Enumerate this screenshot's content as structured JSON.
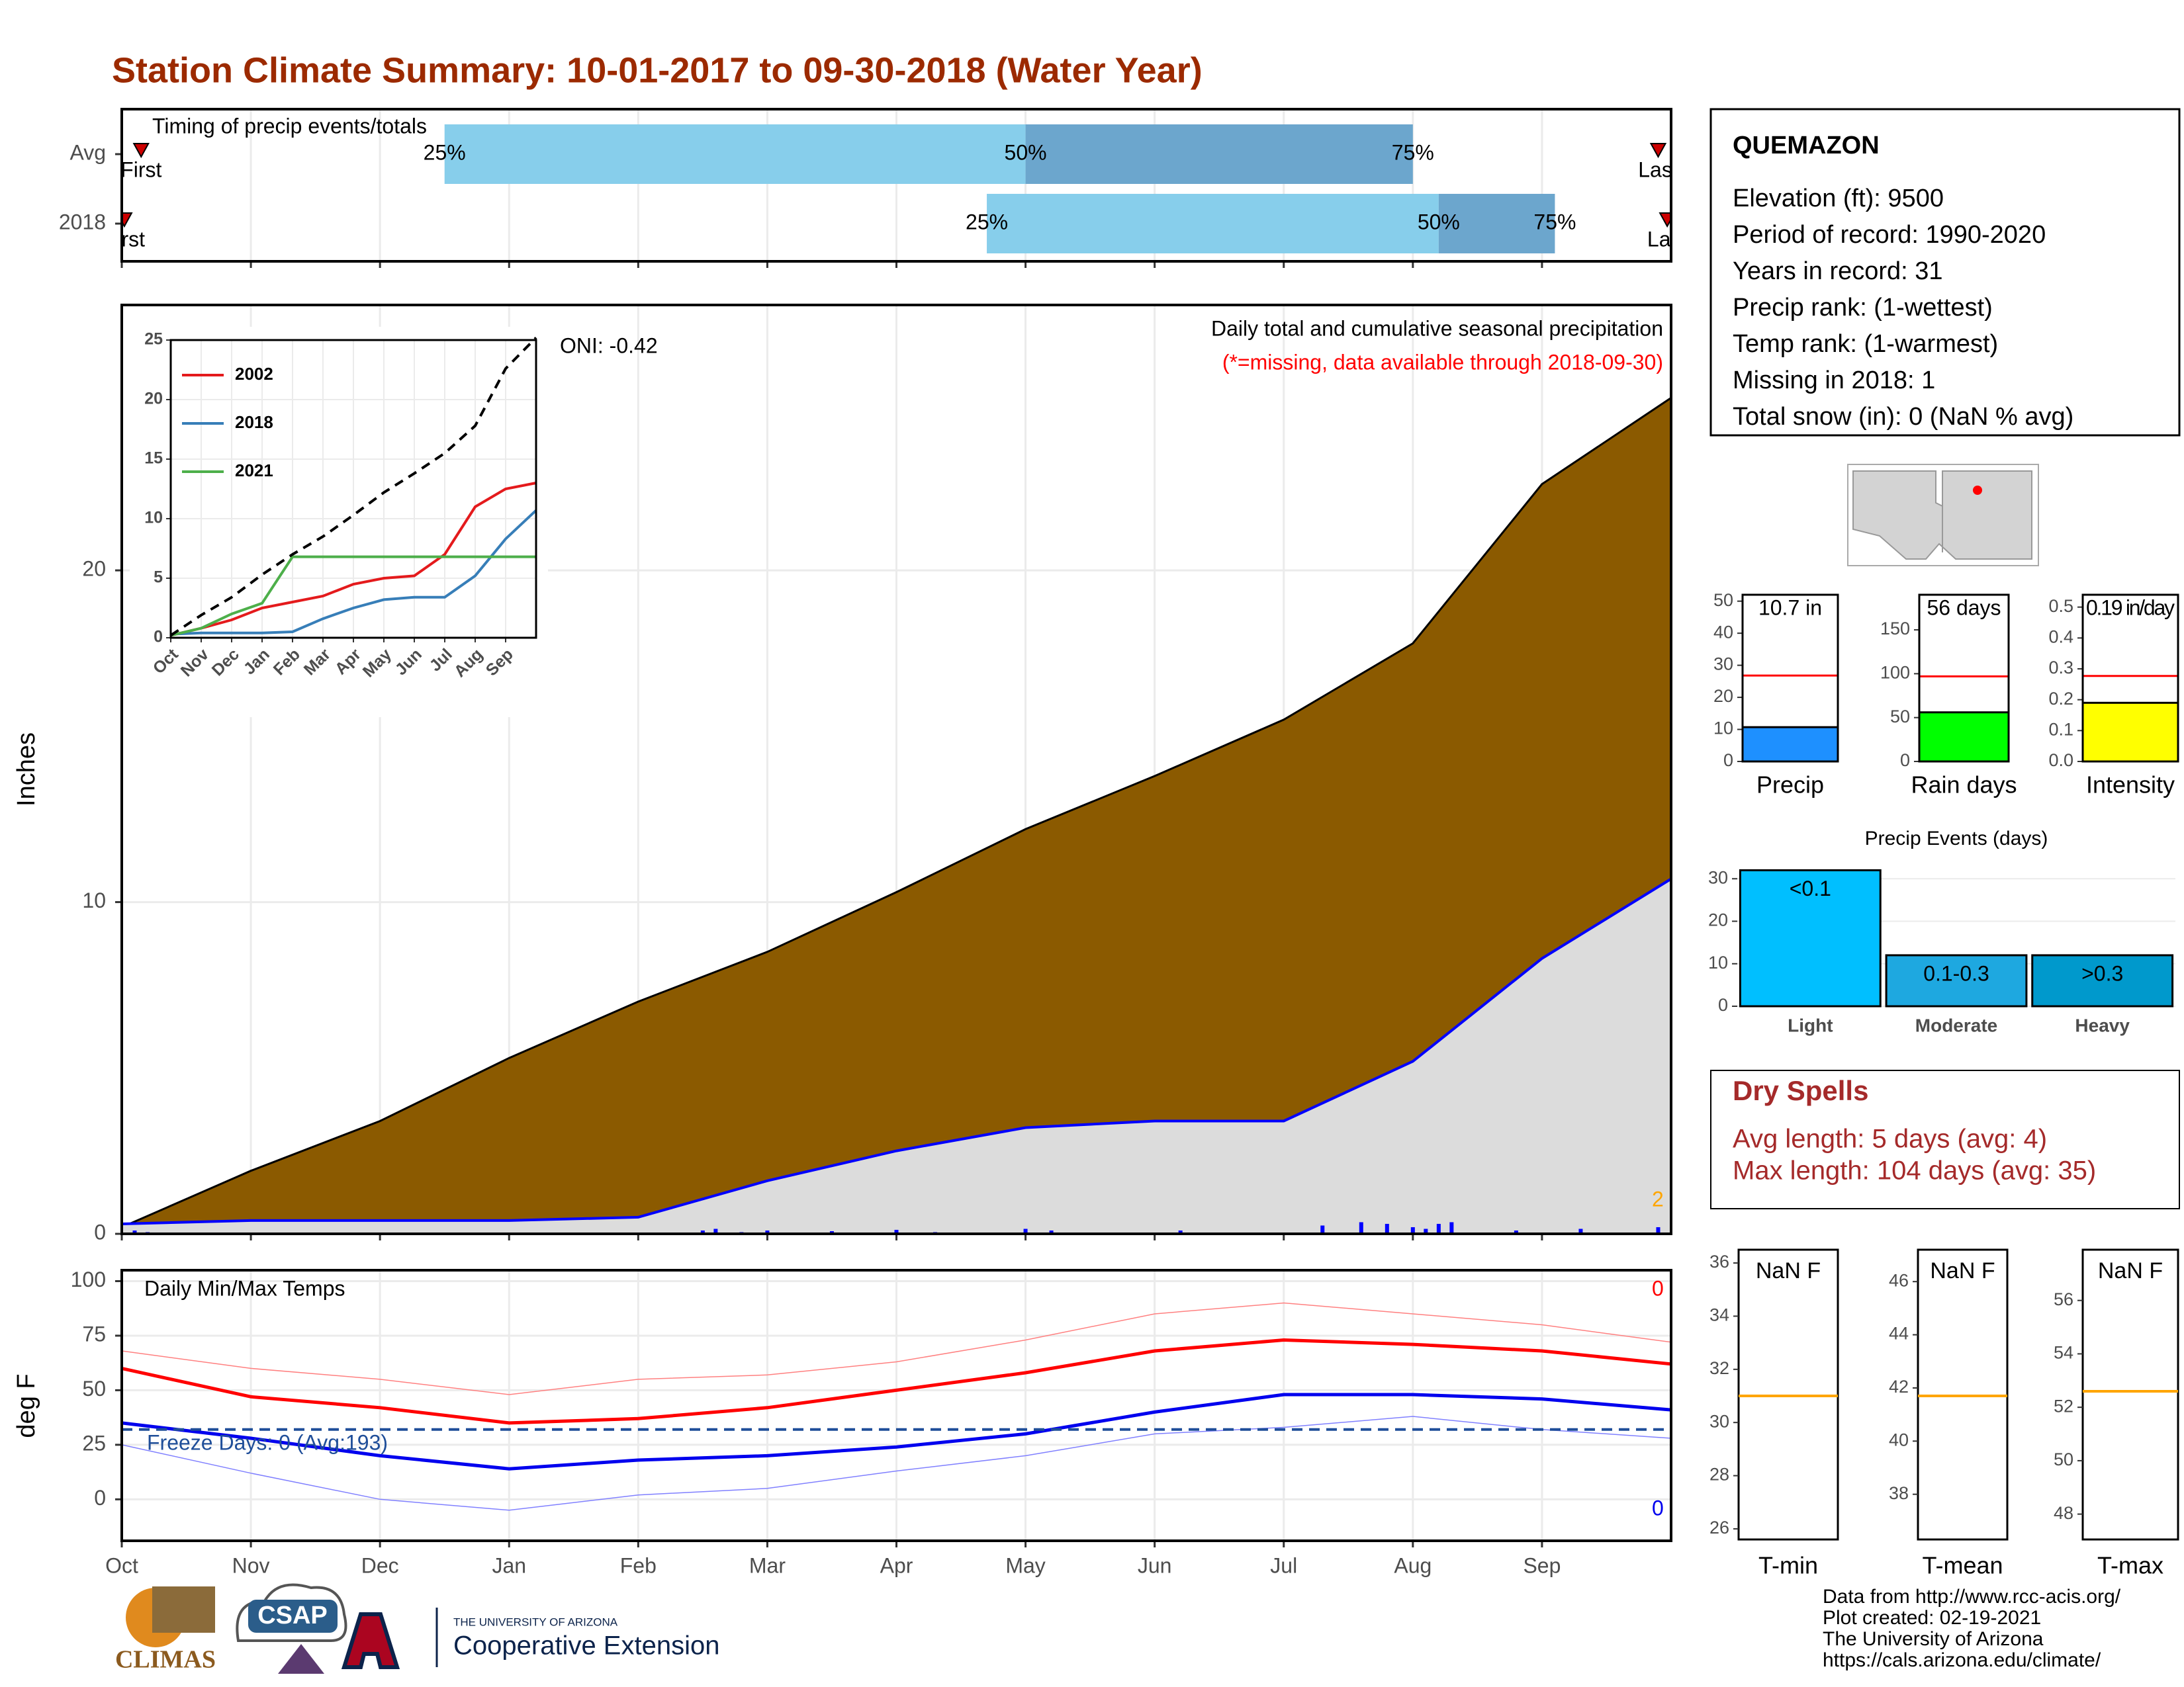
{
  "title": "Station Climate Summary: 10-01-2017 to 09-30-2018 (Water Year)",
  "station": {
    "name": "QUEMAZON",
    "lines": [
      "Elevation (ft): 9500",
      "Period of record: 1990-2020",
      "Years in record: 31",
      "Precip rank:  (1-wettest)",
      "Temp rank:  (1-warmest)",
      "Missing in 2018: 1",
      "Total snow (in): 0 (NaN % avg)"
    ]
  },
  "dry_spells": {
    "title": "Dry Spells",
    "lines": [
      "Avg length: 5 days (avg: 4)",
      "Max length: 104 days (avg: 35)"
    ]
  },
  "footer": [
    "Data from http://www.rcc-acis.org/",
    "Plot created: 02-19-2021",
    "The University of Arizona",
    "https://cals.arizona.edu/climate/"
  ],
  "logos": {
    "climas": "CLIMAS",
    "csap": "CSAP",
    "university": "THE UNIVERSITY OF ARIZONA",
    "extension": "Cooperative Extension"
  },
  "chart_data": [
    {
      "type": "timeline",
      "title": "Timing of precip events/totals",
      "categories": [
        "Avg",
        "2018"
      ],
      "xlim": [
        0,
        12
      ],
      "labels": {
        "first": "First",
        "last": "Last",
        "q25": "25%",
        "q50": "50%",
        "q75": "75%"
      },
      "colors": {
        "q25": "#87ceeb",
        "q50": "#6ca6cd",
        "marker": "#cc0000"
      },
      "rows": [
        {
          "first": 0.15,
          "last": 11.9,
          "q25": 2.5,
          "q50": 7.0,
          "q75": 10.0
        },
        {
          "first": 0.02,
          "last": 11.97,
          "q25": 6.7,
          "q50": 10.2,
          "q75": 11.1
        }
      ]
    },
    {
      "type": "area",
      "title": "Daily total and cumulative seasonal precipitation",
      "subtitle": "(*=missing, data available through 2018-09-30)",
      "annotation": "ONI: -0.42",
      "corner_label": "2",
      "ylabel": "Inches",
      "xlim": [
        0,
        12
      ],
      "ylim": [
        0,
        28
      ],
      "yticks": [
        0,
        10,
        20
      ],
      "x": [
        0,
        1,
        2,
        3,
        4,
        5,
        6,
        7,
        8,
        9,
        10,
        11,
        12
      ],
      "series": [
        {
          "color": "#8b5a00",
          "values": [
            0.2,
            1.9,
            3.4,
            5.3,
            7.0,
            8.5,
            10.3,
            12.2,
            13.8,
            15.5,
            17.8,
            22.6,
            25.2
          ]
        },
        {
          "color": "#0000ff",
          "values": [
            0.3,
            0.4,
            0.4,
            0.4,
            0.5,
            1.6,
            2.5,
            3.2,
            3.4,
            3.4,
            5.2,
            8.3,
            10.7
          ]
        }
      ],
      "daily": {
        "color": "#0000ff",
        "x": [
          0.1,
          0.2,
          4.5,
          4.6,
          4.8,
          5.0,
          5.5,
          6.0,
          6.3,
          7.0,
          7.2,
          8.2,
          9.3,
          9.6,
          9.8,
          10.0,
          10.1,
          10.2,
          10.3,
          10.8,
          11.3,
          11.9
        ],
        "values": [
          0.1,
          0.05,
          0.1,
          0.15,
          0.05,
          0.1,
          0.08,
          0.12,
          0.05,
          0.15,
          0.1,
          0.1,
          0.25,
          0.35,
          0.3,
          0.2,
          0.15,
          0.3,
          0.35,
          0.1,
          0.15,
          0.2
        ]
      }
    },
    {
      "type": "line",
      "xlim": [
        0,
        12
      ],
      "ylim": [
        0,
        25
      ],
      "yticks": [
        0,
        5,
        10,
        15,
        20,
        25
      ],
      "xticks": [
        {
          "value": 0,
          "label": "Oct"
        },
        {
          "value": 1,
          "label": "Nov"
        },
        {
          "value": 2,
          "label": "Dec"
        },
        {
          "value": 3,
          "label": "Jan"
        },
        {
          "value": 4,
          "label": "Feb"
        },
        {
          "value": 5,
          "label": "Mar"
        },
        {
          "value": 6,
          "label": "Apr"
        },
        {
          "value": 7,
          "label": "May"
        },
        {
          "value": 8,
          "label": "Jun"
        },
        {
          "value": 9,
          "label": "Jul"
        },
        {
          "value": 10,
          "label": "Aug"
        },
        {
          "value": 11,
          "label": "Sep"
        }
      ],
      "x": [
        0,
        1,
        2,
        3,
        4,
        5,
        6,
        7,
        8,
        9,
        10,
        11,
        12
      ],
      "series": [
        {
          "name": "2002",
          "color": "#e41a1c",
          "values": [
            0.2,
            0.8,
            1.5,
            2.5,
            3.0,
            3.5,
            4.5,
            5.0,
            5.2,
            7.0,
            11.0,
            12.5,
            13.0
          ]
        },
        {
          "name": "2018",
          "color": "#377eb8",
          "values": [
            0.3,
            0.4,
            0.4,
            0.4,
            0.5,
            1.6,
            2.5,
            3.2,
            3.4,
            3.4,
            5.2,
            8.3,
            10.7
          ]
        },
        {
          "name": "2021",
          "color": "#4daf4a",
          "values": [
            0.2,
            0.8,
            2.0,
            2.9,
            6.8,
            6.8,
            6.8,
            6.8,
            6.8,
            6.8,
            6.8,
            6.8,
            6.8
          ]
        },
        {
          "color": "#000000",
          "dash": true,
          "values": [
            0.2,
            1.9,
            3.4,
            5.3,
            7.0,
            8.5,
            10.3,
            12.2,
            13.8,
            15.5,
            17.8,
            22.6,
            25.2
          ]
        }
      ]
    },
    {
      "type": "temperature",
      "title": "Daily Min/Max Temps",
      "ylabel": "deg F",
      "max_label": "0",
      "min_label": "0",
      "freeze": {
        "label": "Freeze Days: 0 (Avg:193)",
        "value": 32,
        "color": "#1f4e99"
      },
      "xlim": [
        0,
        12
      ],
      "ylim": [
        -19,
        105
      ],
      "yticks": [
        0,
        25,
        50,
        75,
        100
      ],
      "xticks": [
        {
          "value": 0,
          "label": "Oct"
        },
        {
          "value": 1,
          "label": "Nov"
        },
        {
          "value": 2,
          "label": "Dec"
        },
        {
          "value": 3,
          "label": "Jan"
        },
        {
          "value": 4,
          "label": "Feb"
        },
        {
          "value": 5,
          "label": "Mar"
        },
        {
          "value": 6,
          "label": "Apr"
        },
        {
          "value": 7,
          "label": "May"
        },
        {
          "value": 8,
          "label": "Jun"
        },
        {
          "value": 9,
          "label": "Jul"
        },
        {
          "value": 10,
          "label": "Aug"
        },
        {
          "value": 11,
          "label": "Sep"
        }
      ],
      "x": [
        0,
        1,
        2,
        3,
        4,
        5,
        6,
        7,
        8,
        9,
        10,
        11,
        12
      ],
      "series": [
        {
          "color": "#ff8080",
          "width": 1.5,
          "values": [
            68,
            60,
            55,
            48,
            55,
            57,
            63,
            73,
            85,
            90,
            85,
            80,
            72
          ]
        },
        {
          "color": "#ff0000",
          "width": 5,
          "values": [
            60,
            47,
            42,
            35,
            37,
            42,
            50,
            58,
            68,
            73,
            71,
            68,
            62
          ]
        },
        {
          "color": "#0000ee",
          "width": 5,
          "values": [
            35,
            28,
            20,
            14,
            18,
            20,
            24,
            30,
            40,
            48,
            48,
            46,
            41
          ]
        },
        {
          "color": "#8080ff",
          "width": 1.5,
          "values": [
            25,
            12,
            0,
            -5,
            2,
            5,
            13,
            20,
            30,
            33,
            38,
            32,
            28
          ]
        }
      ]
    },
    {
      "type": "gauge",
      "xlabel": "Precip",
      "value": 10.7,
      "value_label": "10.7 in",
      "average": 26.8,
      "color": "#1e90ff",
      "ylim": [
        0,
        52
      ],
      "yticks": [
        0,
        10,
        20,
        30,
        40,
        50
      ]
    },
    {
      "type": "gauge",
      "xlabel": "Rain days",
      "value": 56,
      "value_label": "56 days",
      "average": 97,
      "color": "#00ff00",
      "ylim": [
        0,
        190
      ],
      "yticks": [
        0,
        50,
        100,
        150
      ]
    },
    {
      "type": "gauge",
      "xlabel": "Intensity",
      "value": 0.19,
      "value_label": "0.19 in/day",
      "average": 0.277,
      "color": "#ffff00",
      "ylim": [
        0,
        0.54
      ],
      "yticks": [
        {
          "value": 0,
          "label": "0.0"
        },
        0.1,
        0.2,
        0.3,
        0.4,
        0.5
      ]
    },
    {
      "type": "bar",
      "title": "Precip Events (days)",
      "categories": [
        "Light",
        "Moderate",
        "Heavy"
      ],
      "values": [
        32,
        12,
        12
      ],
      "value_labels": [
        "<0.1",
        "0.1-0.3",
        ">0.3"
      ],
      "colors": [
        "#00bfff",
        "#1ea8e0",
        "#0099cc"
      ],
      "ylim": [
        0,
        33
      ],
      "yticks": [
        0,
        10,
        20,
        30
      ]
    },
    {
      "type": "box",
      "xlabel": "T-min",
      "label": "NaN F",
      "average": 31.0,
      "color": "#ffa500",
      "ylim": [
        25.6,
        36.5
      ],
      "yticks": [
        26,
        28,
        30,
        32,
        34,
        36
      ]
    },
    {
      "type": "box",
      "xlabel": "T-mean",
      "label": "NaN F",
      "average": 41.7,
      "color": "#ffa500",
      "ylim": [
        36.3,
        47.2
      ],
      "yticks": [
        38,
        40,
        42,
        44,
        46
      ]
    },
    {
      "type": "box",
      "xlabel": "T-max",
      "label": "NaN F",
      "average": 52.6,
      "color": "#ffa500",
      "ylim": [
        47.05,
        57.9
      ],
      "yticks": [
        48,
        50,
        52,
        54,
        56
      ]
    }
  ]
}
